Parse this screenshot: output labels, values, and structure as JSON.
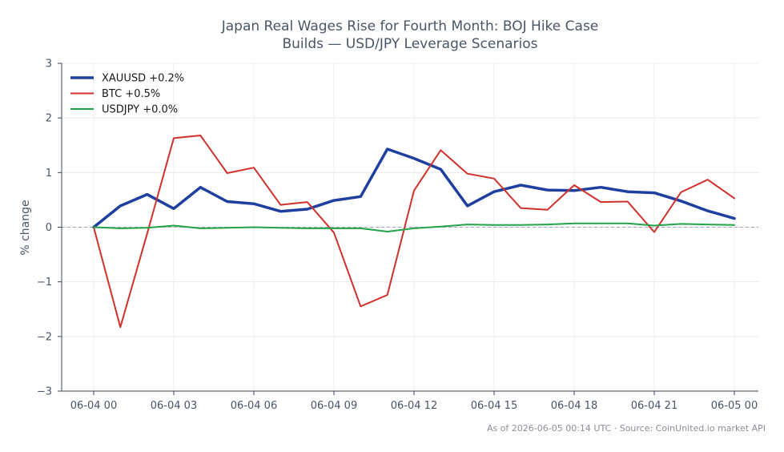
{
  "chart_data": {
    "type": "line",
    "title": "Japan Real Wages Rise for Fourth Month: BOJ Hike Case Builds — USD/JPY Leverage Scenarios",
    "title_lines": [
      "Japan Real Wages Rise for Fourth Month: BOJ Hike Case",
      "Builds — USD/JPY Leverage Scenarios"
    ],
    "xlabel": "",
    "ylabel": "% change",
    "ylim": [
      -3,
      3
    ],
    "yticks": [
      3,
      2,
      1,
      0,
      -1,
      -2,
      -3
    ],
    "ytick_labels": [
      "3",
      "2",
      "1",
      "0",
      "−1",
      "−2",
      "−3"
    ],
    "xlim": [
      -1.2,
      24.9
    ],
    "xtick_positions": [
      0,
      3,
      6,
      9,
      12,
      15,
      18,
      21,
      24
    ],
    "xtick_labels": [
      "06-04 00",
      "06-04 03",
      "06-04 06",
      "06-04 09",
      "06-04 12",
      "06-04 15",
      "06-04 18",
      "06-04 21",
      "06-05 00"
    ],
    "x": [
      0,
      1,
      2,
      3,
      4,
      5,
      6,
      7,
      8,
      9,
      10,
      11,
      12,
      13,
      14,
      15,
      16,
      17,
      18,
      19,
      20,
      21,
      22,
      23,
      24
    ],
    "grid": true,
    "zero_line": true,
    "legend_position": "top-left",
    "series": [
      {
        "name": "XAUUSD +0.2%",
        "color": "#1f3fa0",
        "values": [
          0.0,
          0.39,
          0.6,
          0.34,
          0.73,
          0.47,
          0.43,
          0.29,
          0.33,
          0.49,
          0.56,
          1.43,
          1.26,
          1.06,
          0.39,
          0.65,
          0.77,
          0.68,
          0.67,
          0.73,
          0.65,
          0.63,
          0.48,
          0.3,
          0.16
        ]
      },
      {
        "name": "BTC +0.5%",
        "color": "#d0312d",
        "values": [
          0.0,
          -1.83,
          -0.12,
          1.63,
          1.68,
          0.99,
          1.09,
          0.41,
          0.46,
          -0.1,
          -1.45,
          -1.24,
          0.67,
          1.41,
          0.98,
          0.89,
          0.35,
          0.32,
          0.77,
          0.46,
          0.47,
          -0.09,
          0.64,
          0.87,
          0.53
        ]
      },
      {
        "name": "USDJPY +0.0%",
        "color": "#22a34a",
        "values": [
          0.0,
          -0.02,
          -0.01,
          0.03,
          -0.02,
          -0.01,
          0.0,
          -0.01,
          -0.02,
          -0.02,
          -0.02,
          -0.08,
          -0.02,
          0.01,
          0.05,
          0.04,
          0.04,
          0.05,
          0.07,
          0.07,
          0.07,
          0.03,
          0.06,
          0.05,
          0.04
        ]
      }
    ]
  },
  "footer": "As of 2026-06-05 00:14 UTC · Source: CoinUnited.io market API"
}
